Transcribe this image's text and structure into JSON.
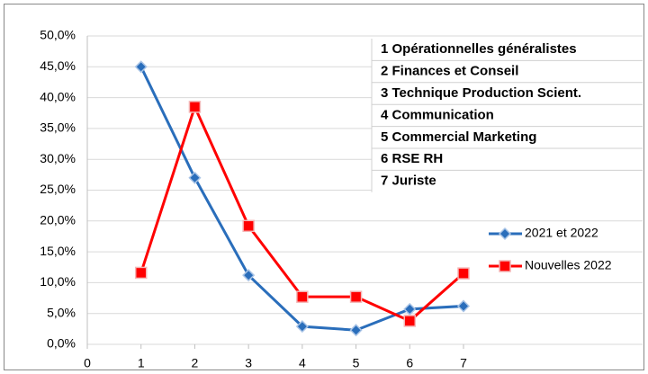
{
  "chart_data": {
    "type": "line",
    "x": [
      1,
      2,
      3,
      4,
      5,
      6,
      7
    ],
    "series": [
      {
        "name": "2021 et 2022",
        "color": "#2a6ebb",
        "marker": "diamond",
        "values": [
          45.0,
          27.0,
          11.2,
          2.9,
          2.3,
          5.7,
          6.2
        ]
      },
      {
        "name": "Nouvelles 2022",
        "color": "#ff0000",
        "marker": "square",
        "values": [
          11.6,
          38.5,
          19.2,
          7.7,
          7.7,
          3.8,
          11.5
        ]
      }
    ],
    "xlim": [
      0,
      7
    ],
    "xticks": [
      0,
      1,
      2,
      3,
      4,
      5,
      6,
      7
    ],
    "ylim": [
      0,
      50
    ],
    "yticks": [
      {
        "value": 0,
        "label": "0,0%"
      },
      {
        "value": 5,
        "label": "5,0%"
      },
      {
        "value": 10,
        "label": "10,0%"
      },
      {
        "value": 15,
        "label": "15,0%"
      },
      {
        "value": 20,
        "label": "20,0%"
      },
      {
        "value": 25,
        "label": "25,0%"
      },
      {
        "value": 30,
        "label": "30,0%"
      },
      {
        "value": 35,
        "label": "35,0%"
      },
      {
        "value": 40,
        "label": "40,0%"
      },
      {
        "value": 45,
        "label": "45,0%"
      },
      {
        "value": 50,
        "label": "50,0%"
      }
    ],
    "grid": true,
    "legend": "right",
    "annotations": [
      "1 Opérationnelles généralistes",
      "2 Finances et Conseil",
      "3 Technique Production Scient.",
      "4 Communication",
      "5 Commercial Marketing",
      "6 RSE RH",
      "7 Juriste"
    ]
  }
}
